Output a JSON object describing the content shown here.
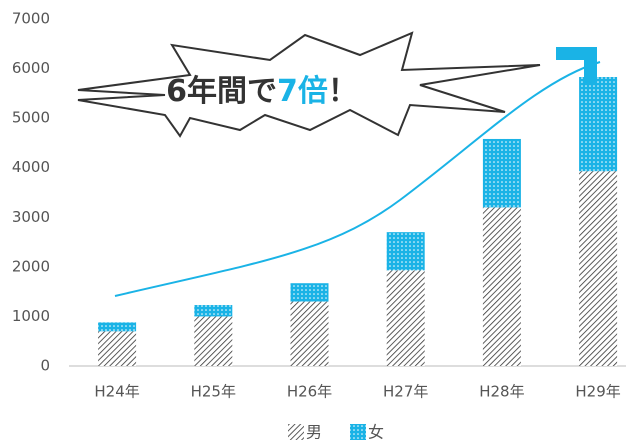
{
  "chart_data": {
    "type": "stacked_bar",
    "callout": [
      "6年間で",
      "7倍",
      "！"
    ],
    "categories": [
      "H24年",
      "H25年",
      "H26年",
      "H27年",
      "H28年",
      "H29年"
    ],
    "series": [
      {
        "name": "男",
        "color": "#333333",
        "values": [
          700,
          1000,
          1300,
          1930,
          3200,
          3930
        ]
      },
      {
        "name": "女",
        "color": "#1ab3e6",
        "values": [
          180,
          230,
          370,
          770,
          1380,
          1900
        ]
      }
    ],
    "ylim": [
      0,
      7000
    ],
    "yticks": [
      0,
      1000,
      2000,
      3000,
      4000,
      5000,
      6000,
      7000
    ],
    "grid": false
  }
}
